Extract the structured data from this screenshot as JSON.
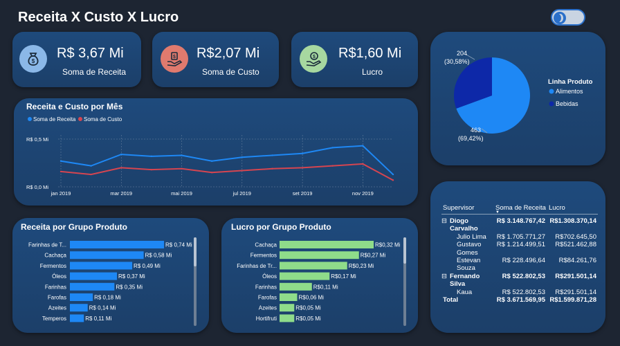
{
  "header": {
    "title": "Receita X Custo X Lucro"
  },
  "kpis": [
    {
      "value": "R$ 3,67 Mi",
      "label": "Soma de Receita",
      "icon": "money-bag-icon",
      "color": "#8bb8e8"
    },
    {
      "value": "R$2,07 Mi",
      "label": "Soma de Custo",
      "icon": "hand-money-icon",
      "color": "#e07a6e"
    },
    {
      "value": "R$1,60 Mi",
      "label": "Lucro",
      "icon": "hand-coin-icon",
      "color": "#a7d8a0"
    }
  ],
  "pie": {
    "legend_title": "Linha Produto",
    "slices": [
      {
        "name": "Alimentos",
        "value": 463,
        "label": "463",
        "pct": "(69,42%)",
        "color": "#1e88f5"
      },
      {
        "name": "Bebidas",
        "value": 204,
        "label": "204",
        "pct": "(30,58%)",
        "color": "#0d28a8"
      }
    ]
  },
  "line_chart": {
    "title": "Receita e Custo por Mês",
    "chart_data": {
      "type": "line",
      "x": [
        "jan 2019",
        "fev 2019",
        "mar 2019",
        "abr 2019",
        "mai 2019",
        "jun 2019",
        "jul 2019",
        "ago 2019",
        "set 2019",
        "out 2019",
        "nov 2019",
        "dez 2019"
      ],
      "x_tick_labels": [
        "jan 2019",
        "mar 2019",
        "mai 2019",
        "jul 2019",
        "set 2019",
        "nov 2019"
      ],
      "y_tick_labels": [
        "R$ 0,5 Mi",
        "R$ 0,0 Mi"
      ],
      "ylim": [
        0,
        0.5
      ],
      "legend_placement": "top-left",
      "series": [
        {
          "name": "Soma de Receita",
          "color": "#1e88f5",
          "values": [
            0.27,
            0.22,
            0.34,
            0.32,
            0.33,
            0.27,
            0.31,
            0.33,
            0.35,
            0.41,
            0.43,
            0.13
          ]
        },
        {
          "name": "Soma de Custo",
          "color": "#d64550",
          "values": [
            0.16,
            0.13,
            0.2,
            0.18,
            0.19,
            0.15,
            0.17,
            0.19,
            0.2,
            0.22,
            0.24,
            0.07
          ]
        }
      ]
    }
  },
  "bar_receita": {
    "title": "Receita por Grupo Produto",
    "chart_data": {
      "type": "bar",
      "orientation": "horizontal",
      "color": "#1e88f5",
      "categories": [
        "Farinhas de T...",
        "Cachaça",
        "Fermentos",
        "Óleos",
        "Farinhas",
        "Farofas",
        "Azeites",
        "Temperos"
      ],
      "values": [
        0.74,
        0.58,
        0.49,
        0.37,
        0.35,
        0.18,
        0.14,
        0.11
      ],
      "value_labels": [
        "R$ 0,74 Mi",
        "R$ 0,58 Mi",
        "R$ 0,49 Mi",
        "R$ 0,37 Mi",
        "R$ 0,35 Mi",
        "R$ 0,18 Mi",
        "R$ 0,14 Mi",
        "R$ 0,11 Mi"
      ]
    }
  },
  "bar_lucro": {
    "title": "Lucro por Grupo Produto",
    "chart_data": {
      "type": "bar",
      "orientation": "horizontal",
      "color": "#8fdc8a",
      "categories": [
        "Cachaça",
        "Fermentos",
        "Farinhas de Tr...",
        "Óleos",
        "Farinhas",
        "Farofas",
        "Azeites",
        "Hortifruti"
      ],
      "values": [
        0.32,
        0.27,
        0.23,
        0.17,
        0.11,
        0.06,
        0.05,
        0.05
      ],
      "value_labels": [
        "R$0,32 Mi",
        "R$0,27 Mi",
        "R$0,23 Mi",
        "R$0,17 Mi",
        "R$0,11 Mi",
        "R$0,06 Mi",
        "R$0,05 Mi",
        "R$0,05 Mi"
      ]
    }
  },
  "table": {
    "headers": [
      "Supervisor",
      "Soma de Receita",
      "Lucro"
    ],
    "rows": [
      {
        "name": "Diogo",
        "receita": "R$ 3.148.767,42",
        "lucro": "R$1.308.370,14",
        "type": "group",
        "expander": "⊟"
      },
      {
        "name": "Carvalho",
        "receita": "",
        "lucro": "",
        "type": "group-cont"
      },
      {
        "name": "Julio Lima",
        "receita": "R$ 1.705.771,27",
        "lucro": "R$702.645,50",
        "type": "child"
      },
      {
        "name": "Gustavo",
        "receita": "R$ 1.214.499,51",
        "lucro": "R$521.462,88",
        "type": "child"
      },
      {
        "name": "Gomes",
        "receita": "",
        "lucro": "",
        "type": "child"
      },
      {
        "name": "Estevan",
        "receita": "R$ 228.496,64",
        "lucro": "R$84.261,76",
        "type": "child"
      },
      {
        "name": "Souza",
        "receita": "",
        "lucro": "",
        "type": "child"
      },
      {
        "name": "Fernando",
        "receita": "R$ 522.802,53",
        "lucro": "R$291.501,14",
        "type": "group",
        "expander": "⊟"
      },
      {
        "name": "Silva",
        "receita": "",
        "lucro": "",
        "type": "group-cont"
      },
      {
        "name": "Kaua",
        "receita": "R$ 522.802,53",
        "lucro": "R$291.501,14",
        "type": "child"
      },
      {
        "name": "Total",
        "receita": "R$ 3.671.569,95",
        "lucro": "R$1.599.871,28",
        "type": "total"
      }
    ]
  }
}
